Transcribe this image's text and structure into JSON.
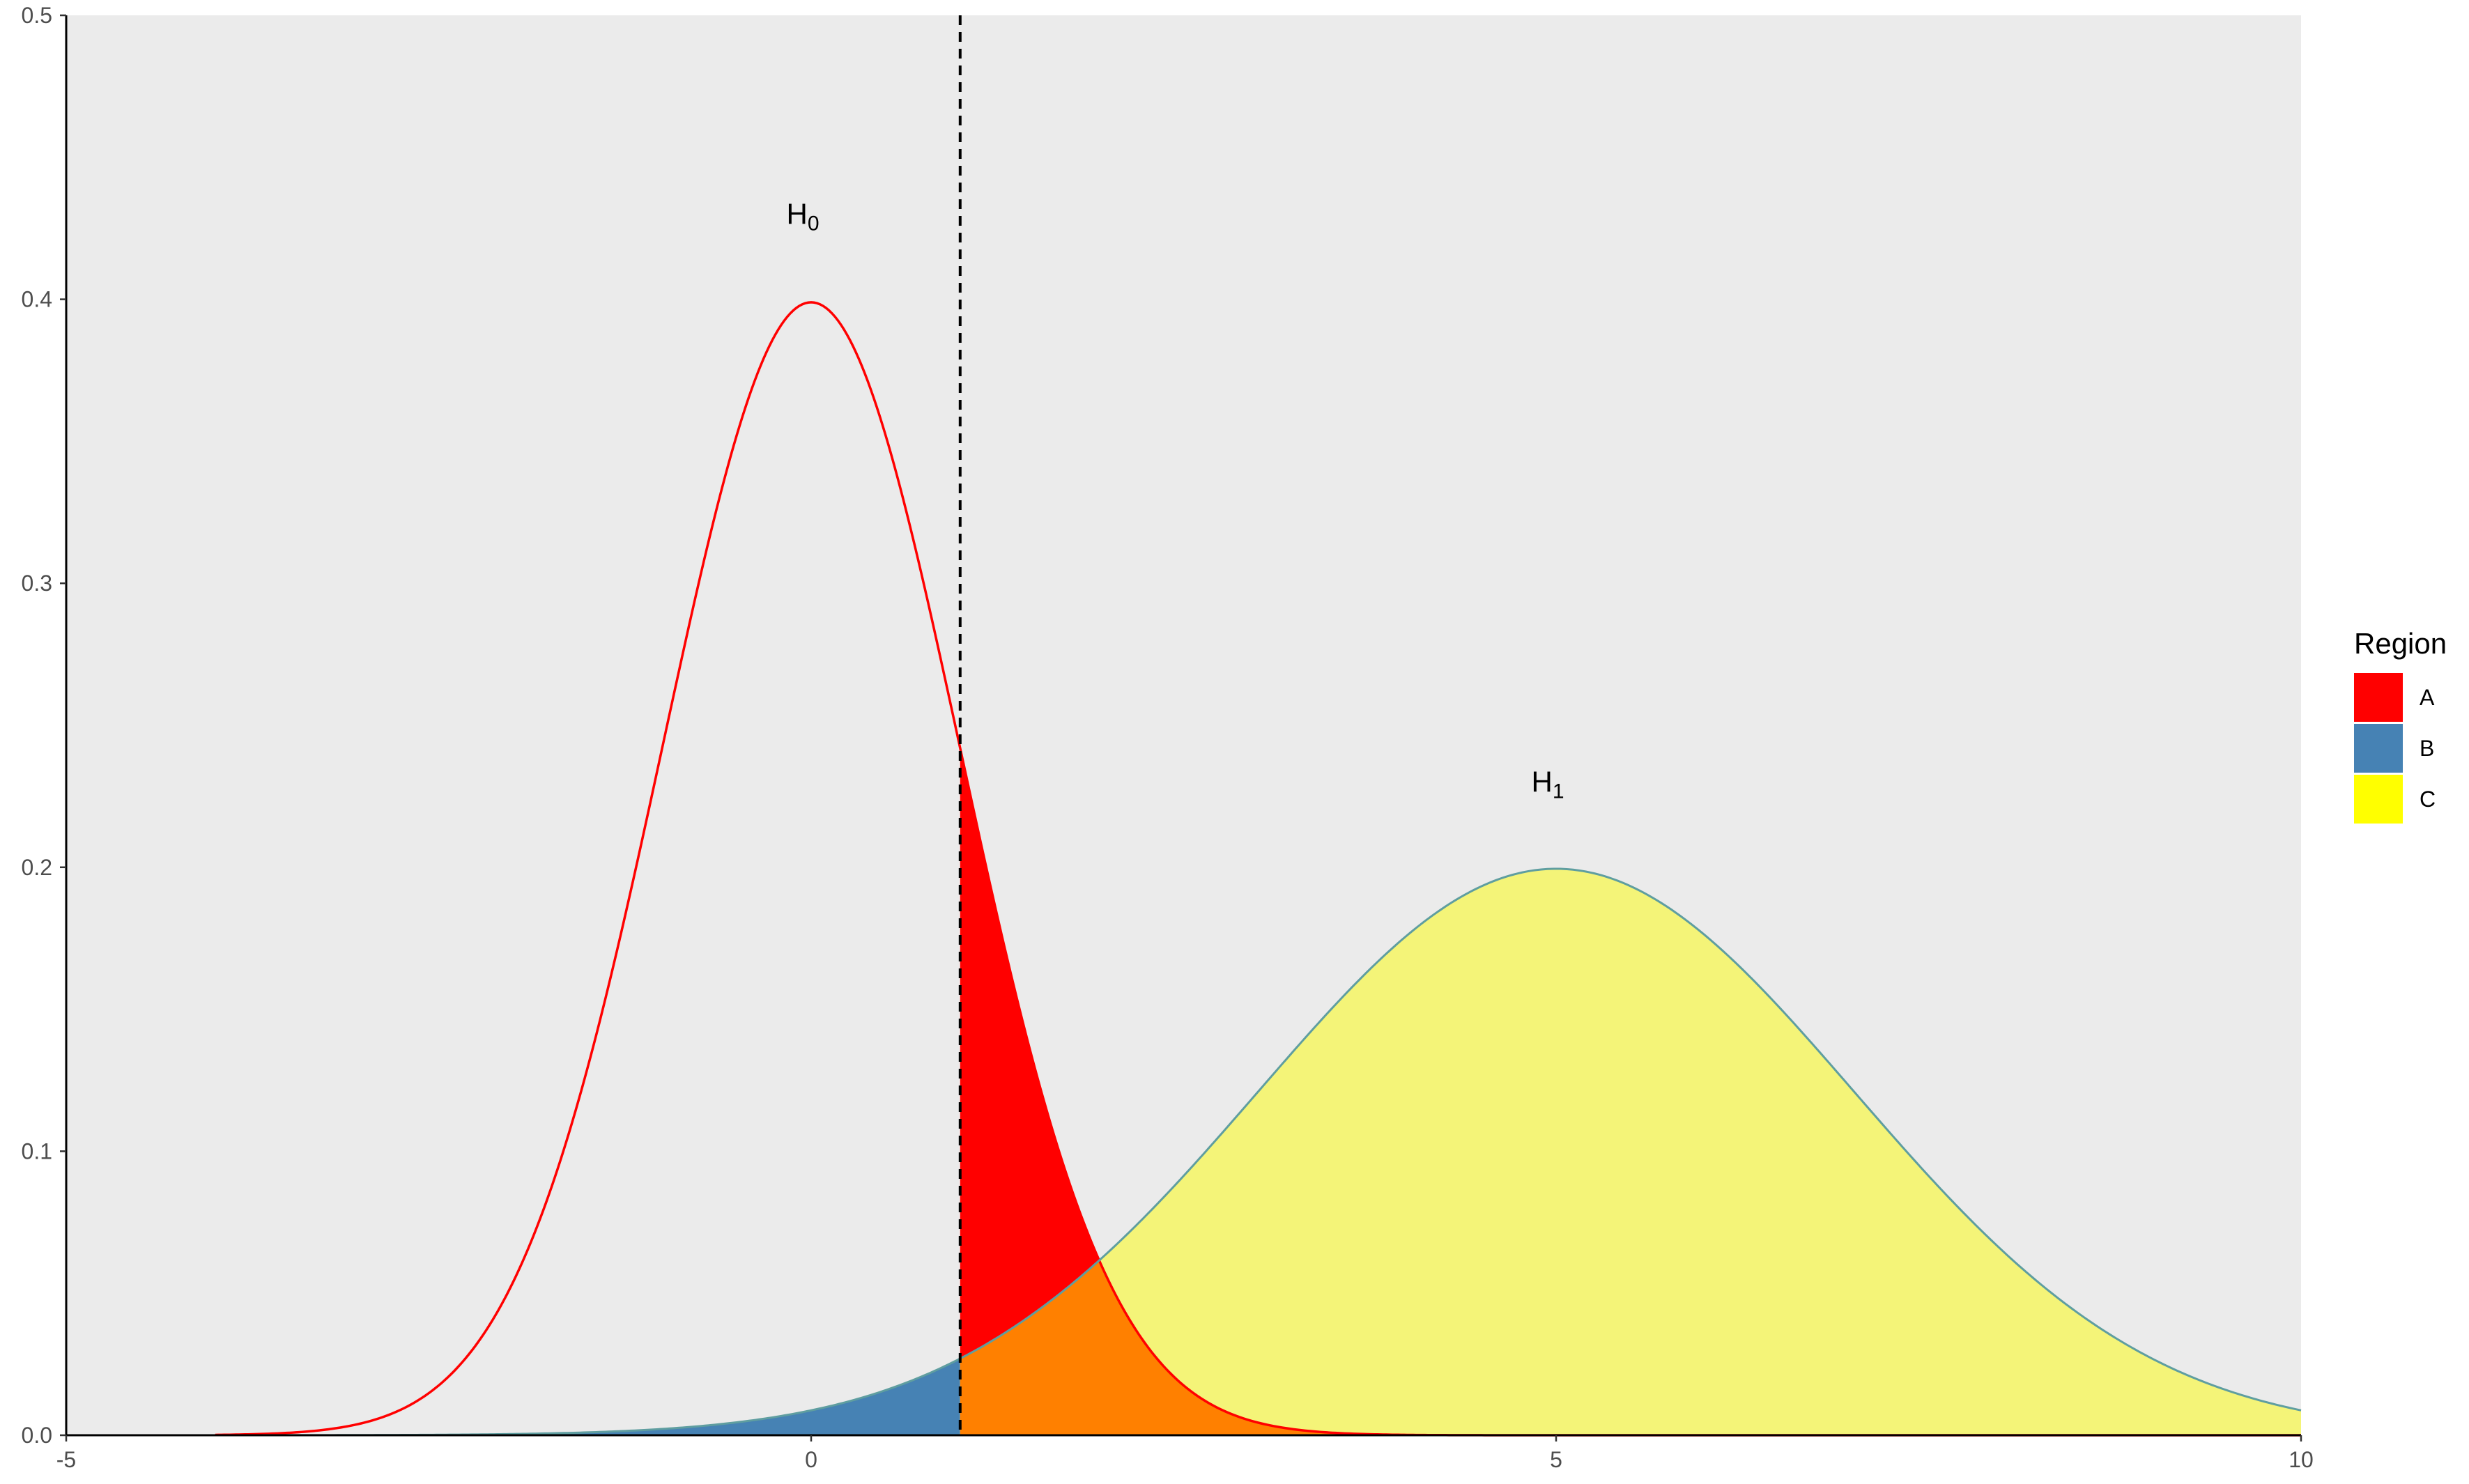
{
  "chart_data": {
    "type": "area",
    "title": "",
    "xlabel": "",
    "ylabel": "",
    "xlim": [
      -5,
      10
    ],
    "ylim": [
      0,
      0.5
    ],
    "x_ticks": [
      {
        "value": -5,
        "label": "-5"
      },
      {
        "value": 0,
        "label": "0"
      },
      {
        "value": 5,
        "label": "5"
      },
      {
        "value": 10,
        "label": "10"
      }
    ],
    "y_ticks": [
      {
        "value": 0,
        "label": "0.0"
      },
      {
        "value": 0.1,
        "label": "0.1"
      },
      {
        "value": 0.2,
        "label": "0.2"
      },
      {
        "value": 0.3,
        "label": "0.3"
      },
      {
        "value": 0.4,
        "label": "0.4"
      },
      {
        "value": 0.5,
        "label": "0.5"
      }
    ],
    "critical_value": 1,
    "curves": {
      "h0": {
        "mean": 0,
        "sd": 1,
        "color": "#ff0000"
      },
      "h1": {
        "mean": 5,
        "sd": 2,
        "color": "#5f9ea0"
      }
    },
    "regions": [
      {
        "key": "A",
        "description_color": "#ff0000"
      },
      {
        "key": "B",
        "description_color": "#4682b4"
      },
      {
        "key": "C",
        "description_color": "#f4f478"
      }
    ],
    "overlap_color": "#ff8000",
    "annotations": [
      {
        "main": "H",
        "sub": "0",
        "x": 0,
        "y": 0.43
      },
      {
        "main": "H",
        "sub": "1",
        "x": 5,
        "y": 0.23
      }
    ],
    "legend": {
      "title": "Region",
      "position": "right",
      "items": [
        {
          "label": "A",
          "color": "#ff0000"
        },
        {
          "label": "B",
          "color": "#4682b4"
        },
        {
          "label": "C",
          "color": "#ffff00"
        }
      ]
    },
    "panel_background": "#ebebeb",
    "grid": false
  }
}
